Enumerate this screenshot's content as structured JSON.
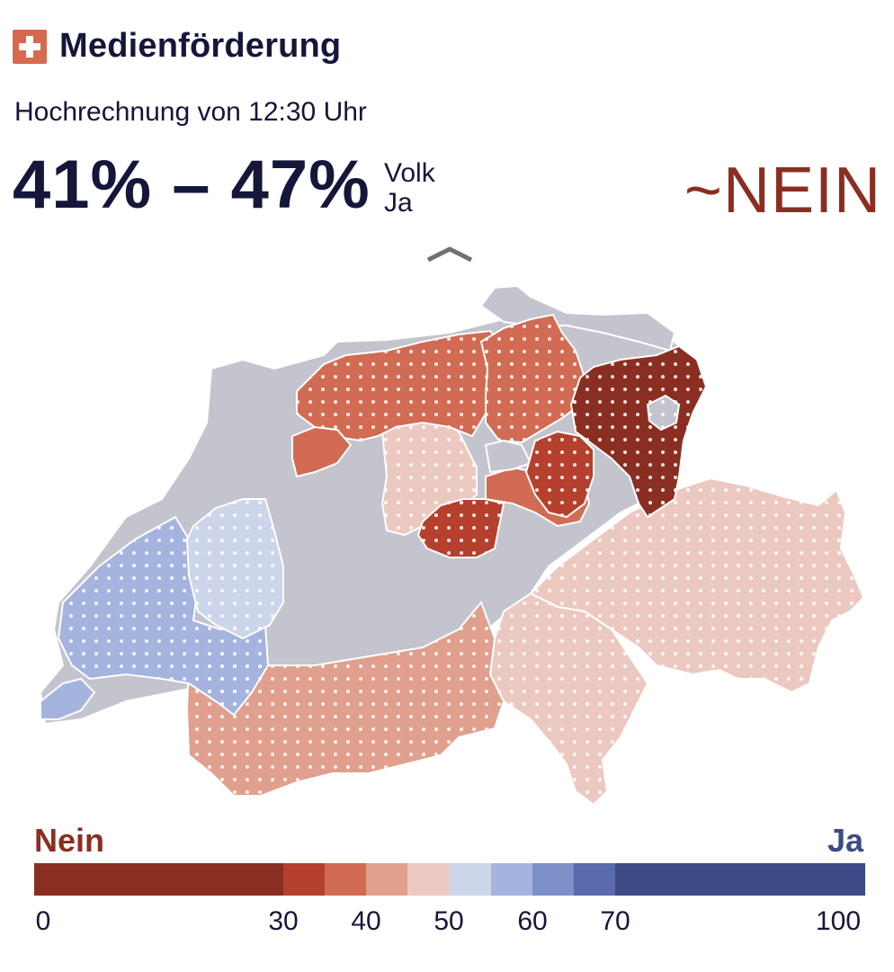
{
  "header": {
    "title": "Medienförderung",
    "flag_icon": "swiss-flag-icon"
  },
  "subtitle": "Hochrechnung von 12:30 Uhr",
  "result": {
    "range": "41% – 47%",
    "label_line1": "Volk",
    "label_line2": "Ja",
    "verdict": "~NEIN"
  },
  "legend": {
    "left_label": "Nein",
    "right_label": "Ja",
    "bins": [
      {
        "from": 0,
        "to": 30,
        "color": "#8b2e22"
      },
      {
        "from": 30,
        "to": 35,
        "color": "#b5402d"
      },
      {
        "from": 35,
        "to": 40,
        "color": "#d26b53"
      },
      {
        "from": 40,
        "to": 45,
        "color": "#e0a08d"
      },
      {
        "from": 45,
        "to": 50,
        "color": "#ecc9c0"
      },
      {
        "from": 50,
        "to": 55,
        "color": "#cdd5ea"
      },
      {
        "from": 55,
        "to": 60,
        "color": "#a5b4de"
      },
      {
        "from": 60,
        "to": 65,
        "color": "#7f8fc8"
      },
      {
        "from": 65,
        "to": 70,
        "color": "#5a6aad"
      },
      {
        "from": 70,
        "to": 100,
        "color": "#3d4a86"
      }
    ],
    "ticks": [
      "0",
      "30",
      "40",
      "50",
      "60",
      "70",
      "100"
    ]
  },
  "colors": {
    "no_data": "#c3c4cd",
    "nein_text": "#8b2e22",
    "ja_text": "#3d4a86"
  }
}
